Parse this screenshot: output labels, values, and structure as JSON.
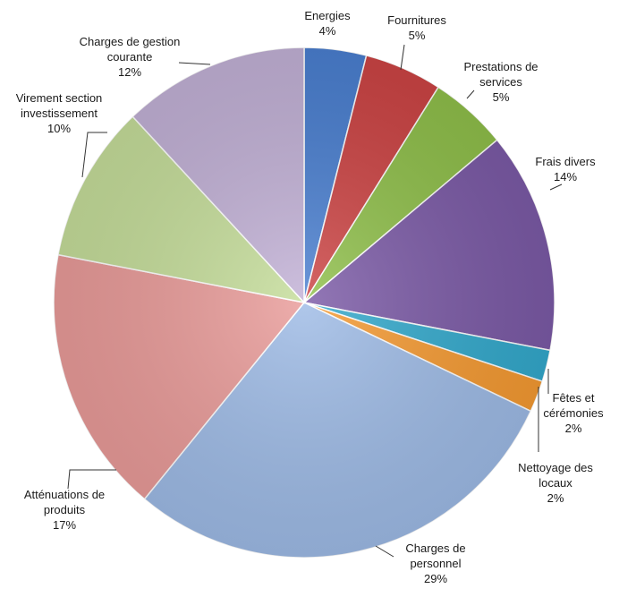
{
  "chart_data": {
    "type": "pie",
    "title": "",
    "start_angle_deg": 0,
    "direction": "clockwise",
    "slices": [
      {
        "label": "Energies",
        "percent_label": "4%",
        "value": 4,
        "color": "#4a7fd0"
      },
      {
        "label": "Fournitures",
        "percent_label": "5%",
        "value": 5,
        "color": "#cc4444"
      },
      {
        "label": "Prestations de services",
        "percent_label": "5%",
        "value": 5,
        "color": "#8fbf4a"
      },
      {
        "label": "Frais divers",
        "percent_label": "14%",
        "value": 14,
        "color": "#7b5aa6"
      },
      {
        "label": "Fêtes et cérémonies",
        "percent_label": "2%",
        "value": 2,
        "color": "#33a9cc"
      },
      {
        "label": "Nettoyage des locaux",
        "percent_label": "2%",
        "value": 2,
        "color": "#f59a32"
      },
      {
        "label": "Charges de personnel",
        "percent_label": "29%",
        "value": 29,
        "color": "#9ebbe6"
      },
      {
        "label": "Atténuations de produits",
        "percent_label": "17%",
        "value": 17,
        "color": "#e99b99"
      },
      {
        "label": "Virement section investissement",
        "percent_label": "10%",
        "value": 10,
        "color": "#c5dd9a"
      },
      {
        "label": "Charges de gestion courante",
        "percent_label": "12%",
        "value": 12,
        "color": "#c2b1d6"
      }
    ]
  }
}
